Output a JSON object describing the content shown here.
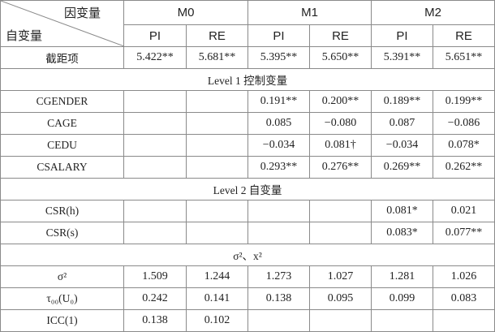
{
  "table": {
    "dependent_header": "因变量",
    "independent_header": "自变量",
    "models": [
      "M0",
      "M1",
      "M2"
    ],
    "subheaders": [
      "PI",
      "RE",
      "PI",
      "RE",
      "PI",
      "RE"
    ],
    "rows": [
      {
        "label": "截距项",
        "cells": [
          "5.422**",
          "5.681**",
          "5.395**",
          "5.650**",
          "5.391**",
          "5.651**"
        ]
      },
      {
        "section": "Level 1 控制变量"
      },
      {
        "label": "CGENDER",
        "cells": [
          null,
          null,
          "0.191**",
          "0.200**",
          "0.189**",
          "0.199**"
        ]
      },
      {
        "label": "CAGE",
        "cells": [
          null,
          null,
          "0.085",
          "−0.080",
          "0.087",
          "−0.086"
        ]
      },
      {
        "label": "CEDU",
        "cells": [
          null,
          null,
          "−0.034",
          "0.081†",
          "−0.034",
          "0.078*"
        ]
      },
      {
        "label": "CSALARY",
        "cells": [
          null,
          null,
          "0.293**",
          "0.276**",
          "0.269**",
          "0.262**"
        ]
      },
      {
        "section": "Level 2 自变量"
      },
      {
        "label": "CSR(h)",
        "cells": [
          null,
          null,
          null,
          null,
          "0.081*",
          "0.021"
        ]
      },
      {
        "label": "CSR(s)",
        "cells": [
          null,
          null,
          null,
          null,
          "0.083*",
          "0.077**"
        ]
      },
      {
        "section": "σ²、x²"
      },
      {
        "label": "σ²",
        "cells": [
          "1.509",
          "1.244",
          "1.273",
          "1.027",
          "1.281",
          "1.026"
        ]
      },
      {
        "label": "τ₀₀(U₀)",
        "cells": [
          "0.242",
          "0.141",
          "0.138",
          "0.095",
          "0.099",
          "0.083"
        ]
      },
      {
        "label": "ICC(1)",
        "cells": [
          "0.138",
          "0.102",
          null,
          null,
          null,
          null
        ]
      }
    ]
  }
}
